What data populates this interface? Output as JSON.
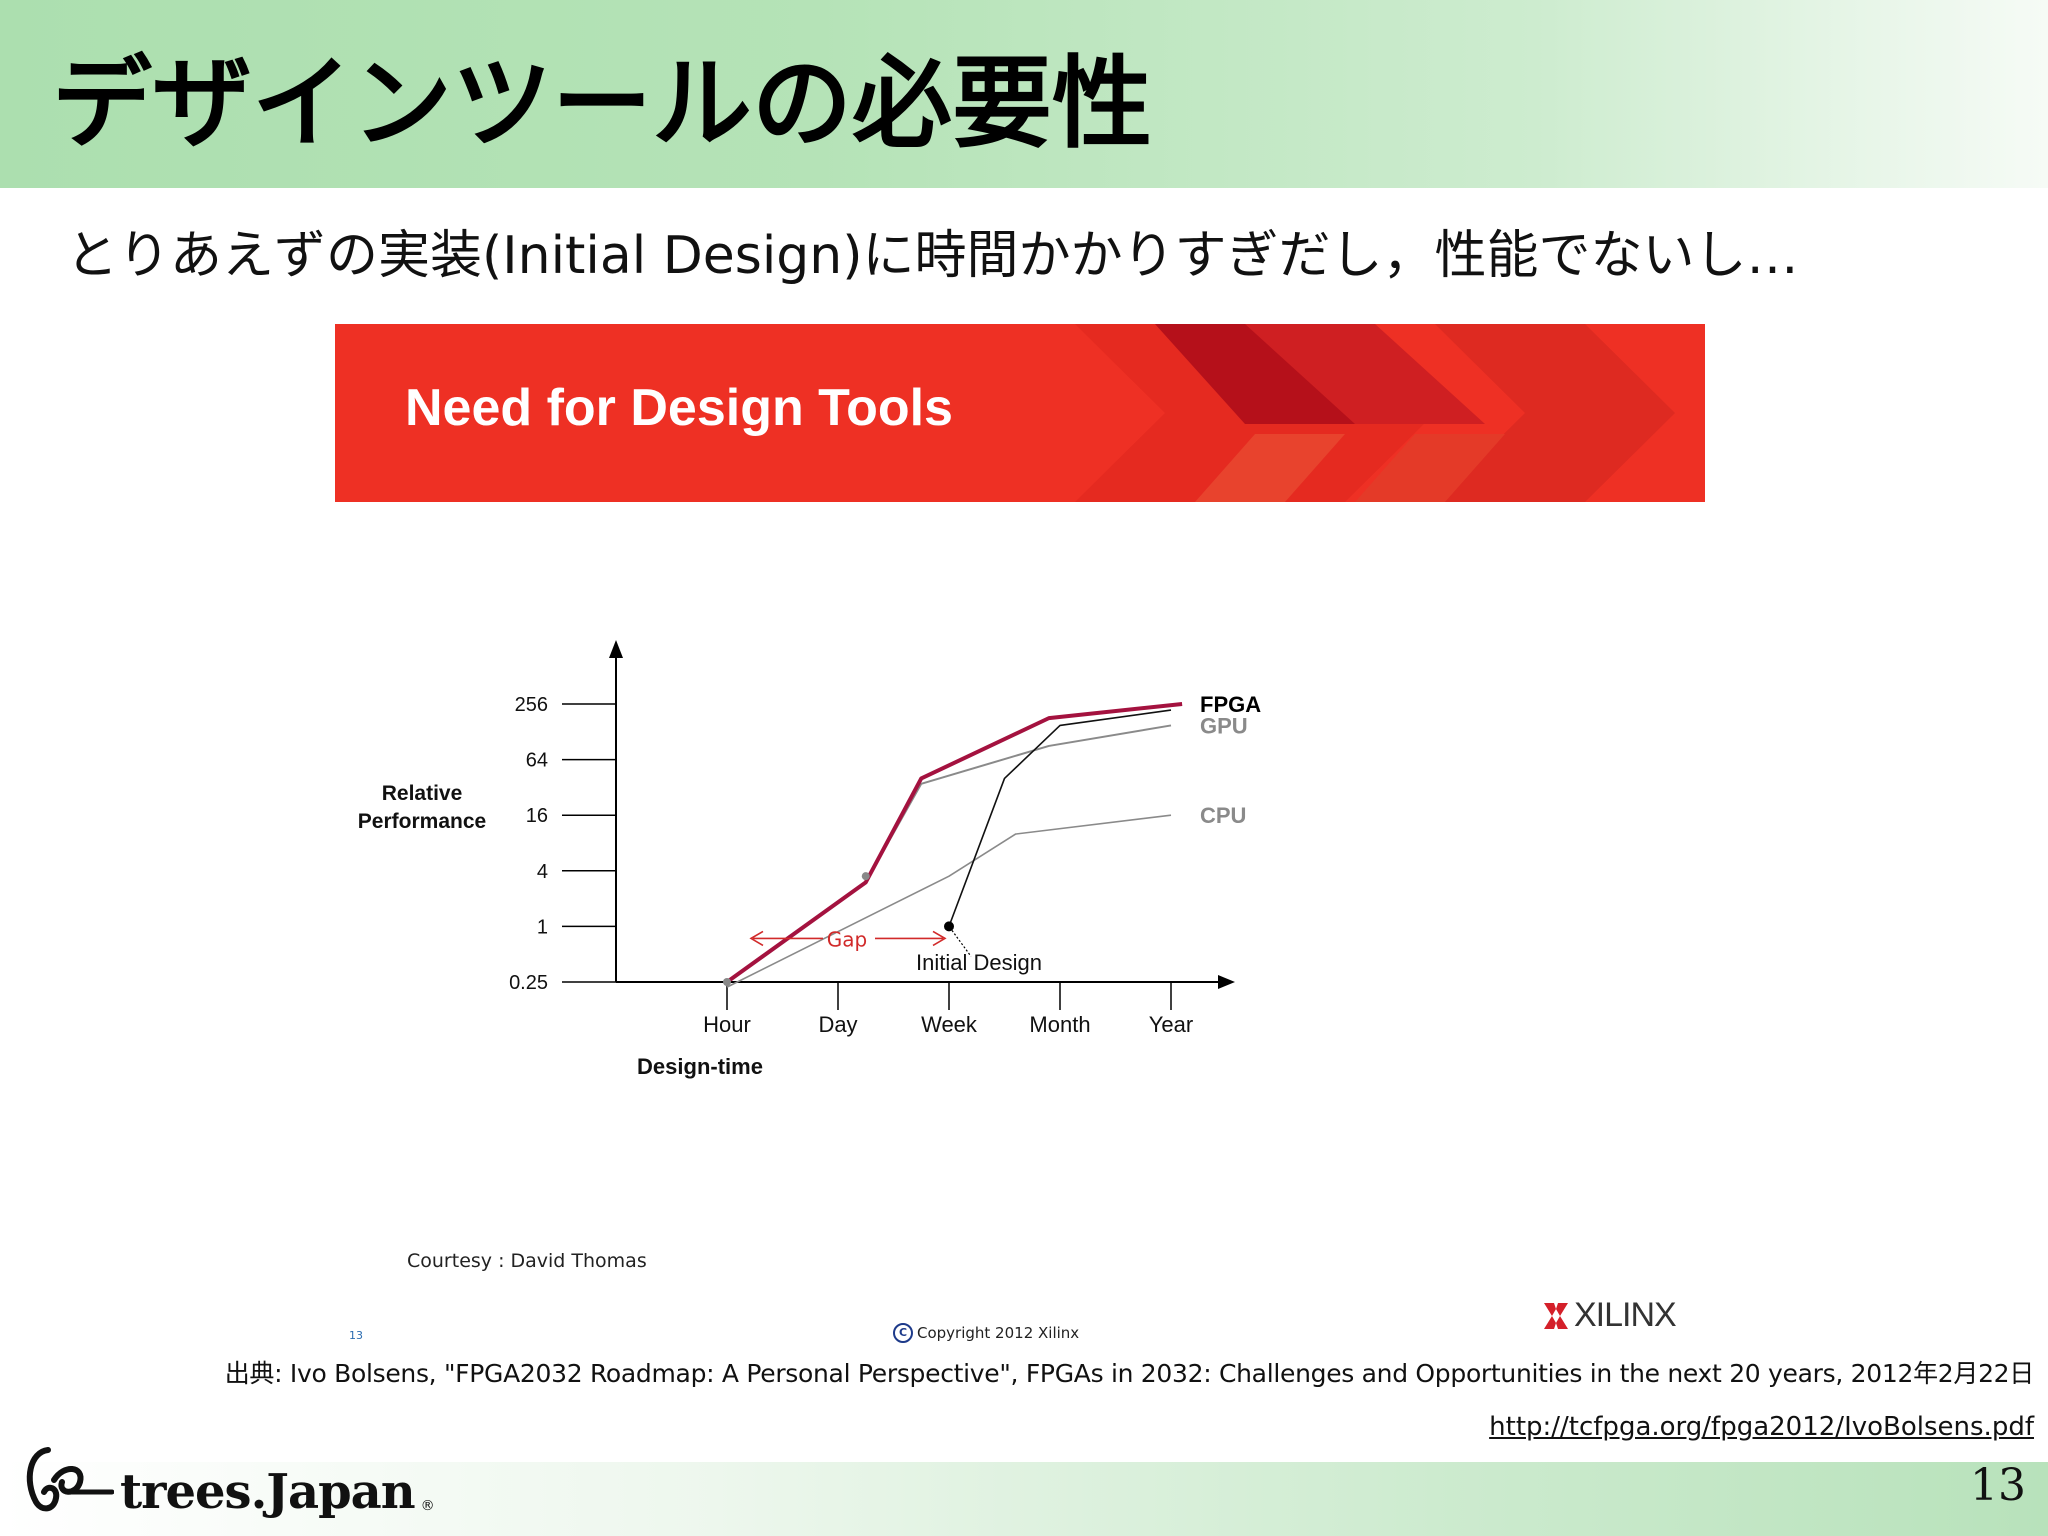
{
  "slide": {
    "title": "デザインツールの必要性",
    "subtitle": "とりあえずの実装(Initial Design)に時間かかりすぎだし，性能でないし…",
    "page_number": "13"
  },
  "embedded_slide": {
    "banner_title": "Need for Design Tools",
    "courtesy": "Courtesy : David Thomas",
    "page_number": "13",
    "copyright": "Copyright 2012 Xilinx",
    "brand": "XILINX",
    "colors": {
      "banner": "#ee3024",
      "fpga": "#a4123f",
      "gap": "#d12a2a",
      "gray": "#8a8a8a"
    }
  },
  "chart_data": {
    "type": "line",
    "title": "",
    "xlabel": "Design-time",
    "ylabel": "Relative Performance",
    "x_categories": [
      "Hour",
      "Day",
      "Week",
      "Month",
      "Year"
    ],
    "y_ticks": [
      "0.25",
      "1",
      "4",
      "16",
      "64",
      "256"
    ],
    "y_scale": "log",
    "ylim": [
      0.25,
      256
    ],
    "series": [
      {
        "name": "FPGA",
        "points": [
          [
            0,
            0.25
          ],
          [
            1.25,
            3
          ],
          [
            1.75,
            40
          ],
          [
            2.9,
            180
          ],
          [
            4.1,
            256
          ]
        ]
      },
      {
        "name": "GPU",
        "points": [
          [
            0,
            0.25
          ],
          [
            1.25,
            3
          ],
          [
            1.75,
            35
          ],
          [
            2.9,
            90
          ],
          [
            4.0,
            150
          ]
        ]
      },
      {
        "name": "CPU",
        "points": [
          [
            0,
            0.22
          ],
          [
            2.0,
            3.5
          ],
          [
            2.6,
            10
          ],
          [
            4.0,
            16
          ]
        ]
      },
      {
        "name": "Initial Design",
        "points": [
          [
            2.0,
            1.0
          ],
          [
            2.5,
            40
          ],
          [
            3.0,
            150
          ],
          [
            4.0,
            220
          ]
        ]
      }
    ],
    "annotations": [
      "Gap",
      "Initial Design"
    ],
    "legend": "right"
  },
  "citation": {
    "text": "出典: Ivo Bolsens, \"FPGA2032 Roadmap: A Personal Perspective\", FPGAs in 2032: Challenges and Opportunities in the next 20 years, 2012年2月22日",
    "url": "http://tcfpga.org/fpga2012/IvoBolsens.pdf"
  },
  "footer": {
    "logo_text": "trees.Japan",
    "logo_mark": "®"
  }
}
